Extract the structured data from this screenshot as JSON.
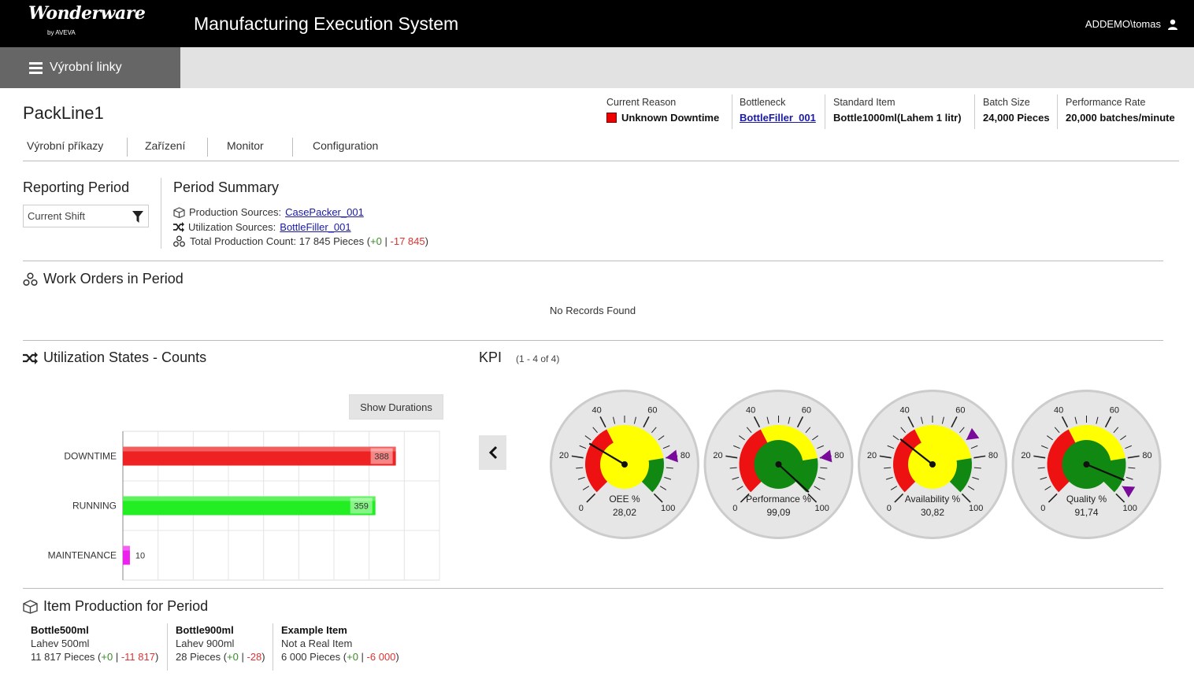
{
  "header": {
    "logo_text": "Wonderware",
    "logo_sub": "by AVEVA",
    "app_title": "Manufacturing Execution System",
    "user": "ADDEMO\\tomas"
  },
  "nav": {
    "menu_label": "Výrobní linky"
  },
  "line": {
    "name": "PackLine1"
  },
  "tabs": [
    {
      "label": "Výrobní příkazy"
    },
    {
      "label": "Zařízení"
    },
    {
      "label": "Monitor",
      "active": true
    },
    {
      "label": "Configuration"
    }
  ],
  "line_info": {
    "current_reason": {
      "label": "Current Reason",
      "value": "Unknown Downtime",
      "color": "#e00000"
    },
    "bottleneck": {
      "label": "Bottleneck",
      "value": "BottleFiller_001"
    },
    "standard_item": {
      "label": "Standard Item",
      "value": "Bottle1000ml(Lahem 1 litr)"
    },
    "batch_size": {
      "label": "Batch Size",
      "value": "24,000 Pieces"
    },
    "performance_rate": {
      "label": "Performance Rate",
      "value": "20,000 batches/minute"
    }
  },
  "reporting_period": {
    "title": "Reporting Period",
    "selected": "Current Shift"
  },
  "period_summary": {
    "title": "Period Summary",
    "production_label": "Production Sources:",
    "production_link": "CasePacker_001",
    "utilization_label": "Utilization Sources:",
    "utilization_link": "BottleFiller_001",
    "total_label": "Total Production Count: 17 845 Pieces (",
    "total_plus": "+0",
    "total_sep": " | ",
    "total_minus": "-17 845",
    "total_close": ")"
  },
  "work_orders": {
    "title": "Work Orders in Period",
    "empty": "No Records Found"
  },
  "utilization": {
    "title": "Utilization States - Counts",
    "button": "Show Durations"
  },
  "chart_data": {
    "type": "bar",
    "orientation": "horizontal",
    "categories": [
      "DOWNTIME",
      "RUNNING",
      "MAINTENANCE"
    ],
    "values": [
      388,
      359,
      10
    ],
    "colors": [
      "#ee2222",
      "#22ee22",
      "#ee22ee"
    ],
    "xlim": [
      0,
      450
    ],
    "grid": true
  },
  "kpi": {
    "title": "KPI",
    "count": "(1 - 4 of 4)",
    "gauges": [
      {
        "name": "OEE %",
        "value": 28.02,
        "display": "28,02",
        "target": 80
      },
      {
        "name": "Performance %",
        "value": 99.09,
        "display": "99,09",
        "target": 80
      },
      {
        "name": "Availability %",
        "value": 30.82,
        "display": "30,82",
        "target": 70
      },
      {
        "name": "Quality %",
        "value": 91.74,
        "display": "91,74",
        "target": 95
      }
    ],
    "tick_labels": [
      "0",
      "20",
      "40",
      "60",
      "80",
      "100"
    ]
  },
  "item_production": {
    "title": "Item Production for Period",
    "items": [
      {
        "name": "Bottle500ml",
        "desc": "Lahev 500ml",
        "count": "11 817 Pieces (",
        "plus": "+0",
        "minus": "-11 817"
      },
      {
        "name": "Bottle900ml",
        "desc": "Lahev 900ml",
        "count": "28 Pieces (",
        "plus": "+0",
        "minus": "-28"
      },
      {
        "name": "Example Item",
        "desc": "Not a Real Item",
        "count": "6 000 Pieces (",
        "plus": "+0",
        "minus": "-6 000"
      }
    ]
  }
}
